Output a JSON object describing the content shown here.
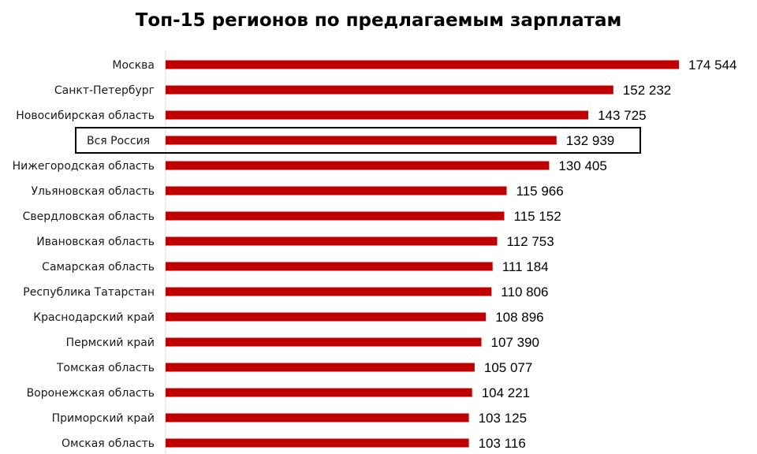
{
  "chart_data": {
    "type": "bar",
    "orientation": "horizontal",
    "title": "Топ-15 регионов по предлагаемым зарплатам",
    "categories": [
      "Москва",
      "Санкт-Петербург",
      "Новосибирская область",
      "Вся Россия",
      "Нижегородская область",
      "Ульяновская область",
      "Свердловская область",
      "Ивановская область",
      "Самарская область",
      "Республика Татарстан",
      "Краснодарский край",
      "Пермский край",
      "Томская область",
      "Воронежская область",
      "Приморский край",
      "Омская область"
    ],
    "values": [
      174544,
      152232,
      143725,
      132939,
      130405,
      115966,
      115152,
      112753,
      111184,
      110806,
      108896,
      107390,
      105077,
      104221,
      103125,
      103116
    ],
    "value_labels": [
      "174 544",
      "152 232",
      "143 725",
      "132 939",
      "130 405",
      "115 966",
      "115 152",
      "112 753",
      "111 184",
      "110 806",
      "108 896",
      "107 390",
      "105 077",
      "104 221",
      "103 125",
      "103 116"
    ],
    "highlighted_category": "Вся Россия",
    "bar_color": "#c00000",
    "highlight_border_color": "#000000",
    "xlim": [
      0,
      174544
    ],
    "grid": false,
    "legend": "none"
  }
}
